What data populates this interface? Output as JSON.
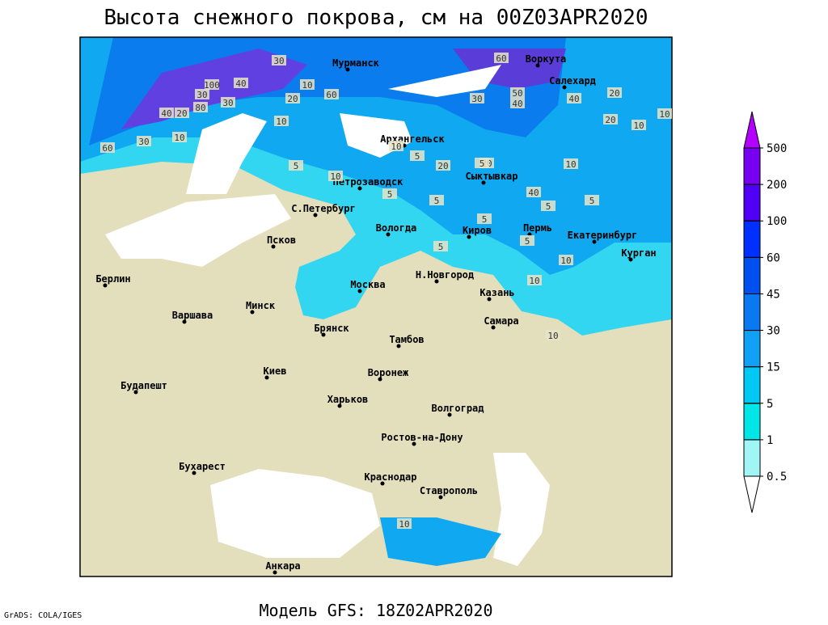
{
  "header": {
    "title": "Высота снежного покрова, см на 00Z03APR2020"
  },
  "footer": {
    "model": "Модель GFS: 18Z02APR2020",
    "credit": "GrADS: COLA/IGES"
  },
  "map": {
    "cities": [
      "Мурманск",
      "Воркута",
      "Салехард",
      "Архангельск",
      "Сыктывкар",
      "Петрозаводск",
      "С.Петербург",
      "Вологда",
      "Киров",
      "Пермь",
      "Екатеринбург",
      "Курган",
      "Псков",
      "Берлин",
      "Минск",
      "Москва",
      "Н.Новгород",
      "Казань",
      "Варшава",
      "Самара",
      "Брянск",
      "Тамбов",
      "Киев",
      "Воронеж",
      "Будапешт",
      "Харьков",
      "Волгоград",
      "Ростов-на-Дону",
      "Бухарест",
      "Краснодар",
      "Ставрополь",
      "Анкара"
    ],
    "contour_labels": [
      30,
      60,
      40,
      100,
      30,
      80,
      40,
      20,
      30,
      10,
      60,
      30,
      60,
      10,
      10,
      20,
      50,
      40,
      30,
      40,
      20,
      10,
      20,
      10,
      10,
      20,
      20,
      5,
      10,
      5,
      5,
      40,
      10,
      5,
      5,
      5,
      5,
      5,
      10,
      10,
      10,
      5,
      5,
      10
    ]
  },
  "colorbar": {
    "levels": [
      0.5,
      1,
      5,
      15,
      30,
      45,
      60,
      100,
      200,
      500
    ],
    "colors": [
      "#ffffff",
      "#a0f5f5",
      "#00e6e6",
      "#00c8f5",
      "#10a0f5",
      "#0a78f0",
      "#0050f0",
      "#0030ff",
      "#5000f5",
      "#7800f0",
      "#b400ff"
    ]
  }
}
